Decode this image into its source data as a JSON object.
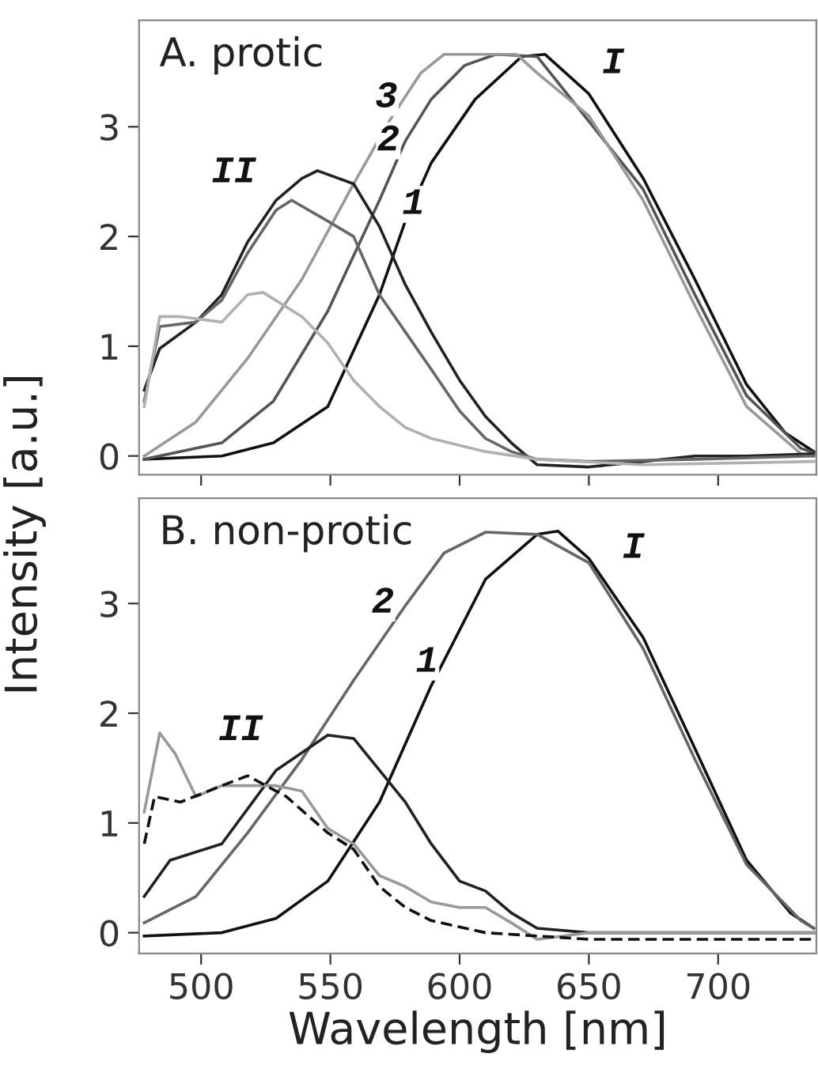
{
  "chart_data": [
    {
      "type": "line",
      "title": "A. protic",
      "ylabel": "Intensity [a.u.]",
      "xlim": [
        476,
        738
      ],
      "ylim": [
        -0.17,
        3.97
      ],
      "xticks": [
        500,
        550,
        600,
        650,
        700
      ],
      "yticks": [
        0,
        1,
        2,
        3
      ],
      "tick_labels": "y",
      "grid": false,
      "series": [
        {
          "color": "#111111",
          "x": [
            478,
            508,
            528,
            549,
            569,
            579,
            589,
            606,
            624,
            633,
            650,
            671,
            691,
            711,
            726,
            737
          ],
          "values": [
            -0.03,
            0,
            0.12,
            0.45,
            1.47,
            2.14,
            2.67,
            3.25,
            3.64,
            3.66,
            3.3,
            2.53,
            1.61,
            0.65,
            0.21,
            0.04
          ]
        },
        {
          "color": "#555555",
          "x": [
            478,
            508,
            528,
            549,
            569,
            579,
            589,
            602,
            614,
            630,
            671,
            691,
            711,
            732,
            737
          ],
          "values": [
            -0.03,
            0.12,
            0.5,
            1.32,
            2.33,
            2.87,
            3.25,
            3.56,
            3.66,
            3.64,
            2.43,
            1.47,
            0.55,
            0.07,
            0.03
          ]
        },
        {
          "color": "#999999",
          "x": [
            478,
            498,
            518,
            539,
            559,
            573,
            585,
            594,
            622,
            630,
            650,
            671,
            691,
            711,
            732,
            737
          ],
          "values": [
            0,
            0.31,
            0.89,
            1.61,
            2.48,
            3.06,
            3.49,
            3.66,
            3.66,
            3.49,
            3.1,
            2.33,
            1.37,
            0.45,
            0.02,
            0
          ]
        },
        {
          "color": "#222222",
          "x": [
            478,
            484,
            498,
            508,
            518,
            529,
            539,
            545,
            559,
            569,
            579,
            589,
            600,
            610,
            620,
            630,
            650,
            671,
            691,
            711,
            737
          ],
          "values": [
            0.6,
            0.98,
            1.22,
            1.47,
            1.95,
            2.33,
            2.53,
            2.6,
            2.48,
            2.09,
            1.56,
            1.13,
            0.69,
            0.36,
            0.12,
            -0.08,
            -0.1,
            -0.05,
            0,
            0,
            0.02
          ]
        },
        {
          "color": "#666666",
          "x": [
            478,
            484,
            498,
            508,
            518,
            529,
            535,
            549,
            559,
            569,
            579,
            589,
            600,
            610,
            620,
            630,
            650,
            691,
            737
          ],
          "values": [
            0.5,
            1.18,
            1.22,
            1.42,
            1.85,
            2.24,
            2.33,
            2.14,
            2.0,
            1.47,
            1.13,
            0.79,
            0.41,
            0.16,
            0.04,
            -0.03,
            -0.05,
            -0.03,
            0
          ]
        },
        {
          "color": "#b0b0b0",
          "x": [
            478,
            484,
            492,
            508,
            518,
            524,
            539,
            549,
            559,
            569,
            579,
            589,
            610,
            630,
            671,
            737
          ],
          "values": [
            0.45,
            1.27,
            1.27,
            1.22,
            1.47,
            1.49,
            1.27,
            1.03,
            0.69,
            0.45,
            0.26,
            0.16,
            0.04,
            -0.03,
            -0.08,
            -0.05
          ]
        }
      ],
      "annotations": [
        "I",
        "II",
        "3",
        "2",
        "1"
      ]
    },
    {
      "type": "line",
      "title": "B. non-protic",
      "xlabel": "Wavelength [nm]",
      "xlim": [
        476,
        738
      ],
      "ylim": [
        -0.19,
        3.96
      ],
      "xticks": [
        500,
        550,
        600,
        650,
        700
      ],
      "yticks": [
        0,
        1,
        2,
        3
      ],
      "grid": false,
      "series": [
        {
          "color": "#111111",
          "x": [
            478,
            508,
            529,
            549,
            569,
            589,
            610,
            630,
            638,
            650,
            671,
            691,
            711,
            728,
            737
          ],
          "values": [
            -0.03,
            0,
            0.13,
            0.47,
            1.19,
            2.25,
            3.22,
            3.63,
            3.66,
            3.41,
            2.69,
            1.68,
            0.66,
            0.18,
            0.04
          ]
        },
        {
          "color": "#666666",
          "x": [
            478,
            498,
            518,
            539,
            559,
            579,
            594,
            610,
            630,
            650,
            671,
            691,
            711,
            732,
            737
          ],
          "values": [
            0.09,
            0.33,
            0.91,
            1.58,
            2.3,
            2.98,
            3.46,
            3.65,
            3.63,
            3.37,
            2.59,
            1.58,
            0.62,
            0.11,
            0.04
          ]
        },
        {
          "color": "#222222",
          "x": [
            478,
            488,
            508,
            529,
            549,
            559,
            569,
            579,
            589,
            600,
            610,
            620,
            630,
            650,
            671,
            737
          ],
          "values": [
            0.33,
            0.66,
            0.81,
            1.48,
            1.8,
            1.77,
            1.48,
            1.19,
            0.81,
            0.47,
            0.38,
            0.18,
            0.04,
            0,
            0,
            0
          ]
        },
        {
          "color": "#999999",
          "x": [
            478,
            484,
            490,
            498,
            508,
            529,
            539,
            549,
            559,
            569,
            579,
            589,
            600,
            610,
            620,
            630,
            650,
            737
          ],
          "values": [
            1.1,
            1.82,
            1.63,
            1.24,
            1.34,
            1.34,
            1.29,
            0.95,
            0.81,
            0.52,
            0.42,
            0.28,
            0.23,
            0.23,
            0.09,
            -0.06,
            0,
            0
          ]
        },
        {
          "color": "#111111",
          "line_style": "dashed",
          "x": [
            478,
            482,
            492,
            508,
            518,
            533,
            549,
            559,
            569,
            579,
            589,
            610,
            650,
            737
          ],
          "values": [
            0.81,
            1.24,
            1.19,
            1.34,
            1.43,
            1.24,
            0.91,
            0.76,
            0.42,
            0.23,
            0.11,
            0,
            -0.06,
            -0.06
          ]
        }
      ],
      "annotations": [
        "I",
        "II",
        "2",
        "1"
      ]
    }
  ]
}
